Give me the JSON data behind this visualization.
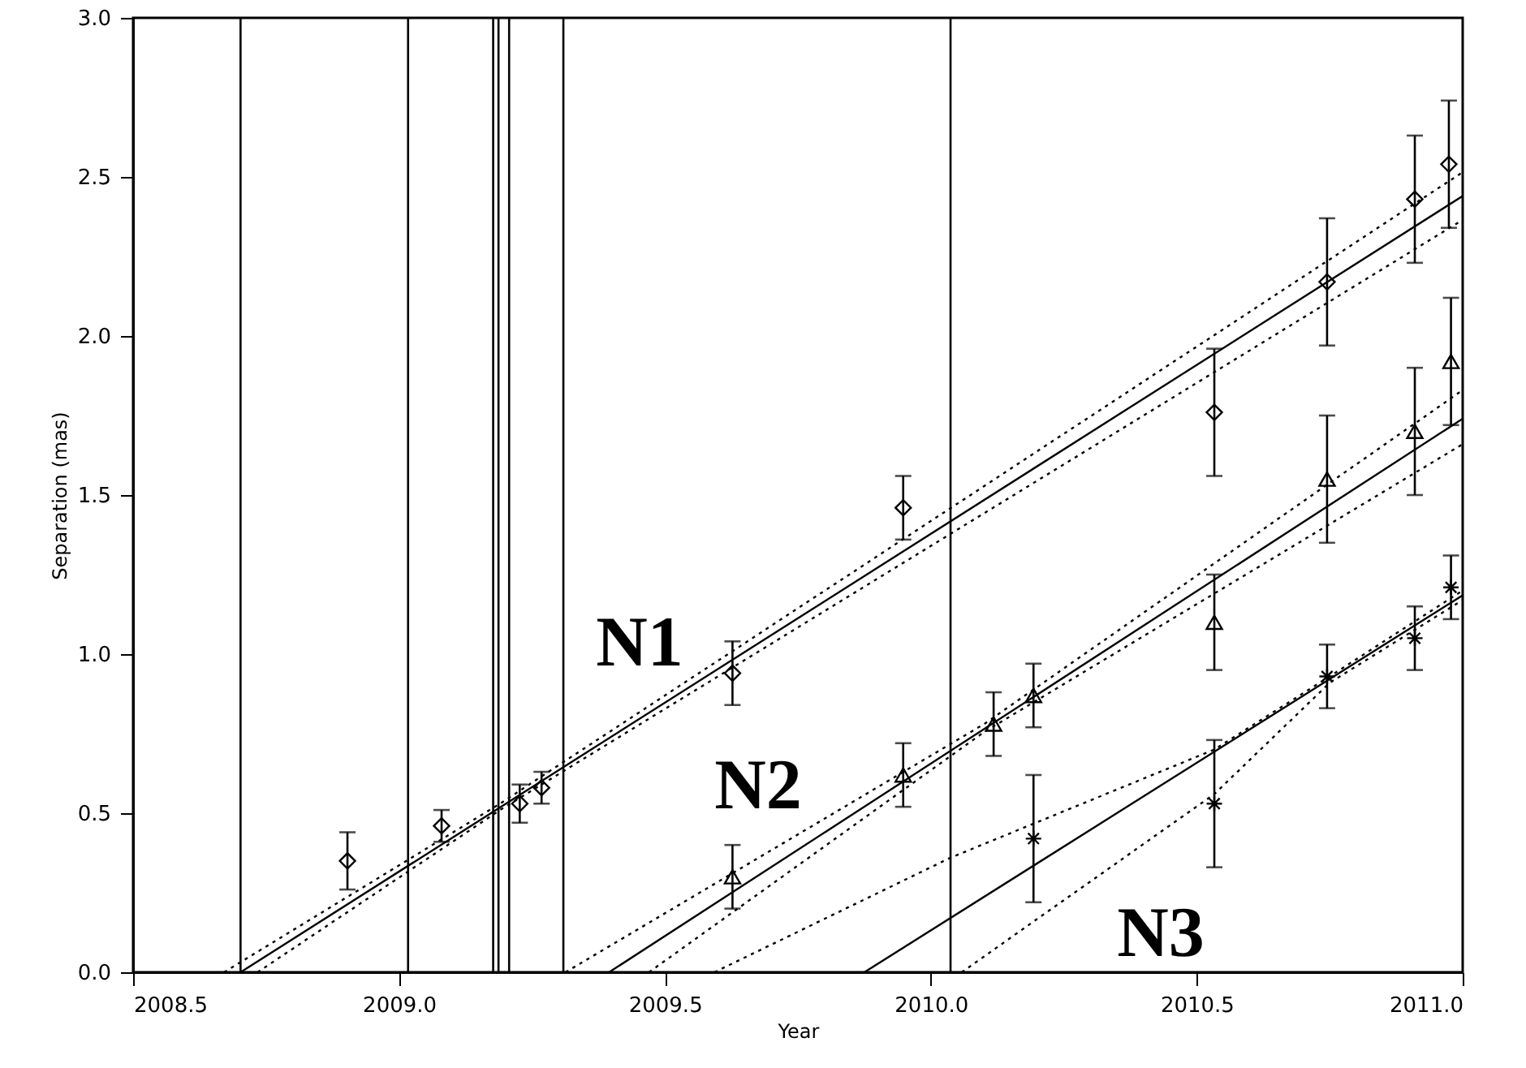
{
  "chart_data": {
    "type": "scatter",
    "xlabel": "Year",
    "ylabel": "Separation (mas)",
    "xlim": [
      2008.5,
      2011.0
    ],
    "ylim": [
      0.0,
      3.0
    ],
    "xticks": [
      {
        "value": 2008.5,
        "label": "2008.5"
      },
      {
        "value": 2009,
        "label": "2009.0"
      },
      {
        "value": 2009.5,
        "label": "2009.5"
      },
      {
        "value": 2010,
        "label": "2010.0"
      },
      {
        "value": 2010.5,
        "label": "2010.5"
      },
      {
        "value": 2011,
        "label": "2011.0"
      }
    ],
    "yticks": [
      {
        "value": 0,
        "label": "0.0"
      },
      {
        "value": 0.5,
        "label": "0.5"
      },
      {
        "value": 1,
        "label": "1.0"
      },
      {
        "value": 1.5,
        "label": "1.5"
      },
      {
        "value": 2,
        "label": "2.0"
      },
      {
        "value": 2.5,
        "label": "2.5"
      },
      {
        "value": 3,
        "label": "3.0"
      }
    ],
    "grid": false,
    "series": [
      {
        "marker": "diamond",
        "color": "#000000",
        "x": [
          2008.903,
          2009.08,
          2009.227,
          2009.268,
          2009.627,
          2009.948,
          2010.533,
          2010.745,
          2010.91,
          2010.974
        ],
        "values": [
          0.35,
          0.46,
          0.53,
          0.58,
          0.94,
          1.46,
          1.76,
          2.17,
          2.43,
          2.54
        ],
        "errors": [
          0.09,
          0.05,
          0.06,
          0.05,
          0.1,
          0.1,
          0.2,
          0.2,
          0.2,
          0.2
        ]
      },
      {
        "marker": "triangle",
        "color": "#000000",
        "x": [
          2009.627,
          2009.948,
          2010.118,
          2010.193,
          2010.533,
          2010.745,
          2010.91,
          2010.978
        ],
        "values": [
          0.3,
          0.62,
          0.78,
          0.87,
          1.1,
          1.55,
          1.7,
          1.92
        ],
        "errors": [
          0.1,
          0.1,
          0.1,
          0.1,
          0.15,
          0.2,
          0.2,
          0.2
        ]
      },
      {
        "marker": "cross",
        "color": "#000000",
        "x": [
          2010.193,
          2010.533,
          2010.745,
          2010.91,
          2010.978
        ],
        "values": [
          0.42,
          0.53,
          0.93,
          1.05,
          1.21
        ],
        "errors": [
          0.2,
          0.2,
          0.1,
          0.1,
          0.1
        ]
      },
      {
        "type": "line",
        "line_style": "solid",
        "color": "#000000",
        "x": [
          2008.702,
          2011.0
        ],
        "values": [
          0.0,
          2.44
        ]
      },
      {
        "type": "line",
        "line_style": "dotted",
        "color": "#000000",
        "x": [
          2008.671,
          2009.19,
          2011.0
        ],
        "values": [
          0.0,
          0.53,
          2.515
        ]
      },
      {
        "type": "line",
        "line_style": "dotted",
        "color": "#000000",
        "x": [
          2008.734,
          2009.19,
          2011.0
        ],
        "values": [
          0.0,
          0.51,
          2.365
        ]
      },
      {
        "type": "line",
        "line_style": "solid",
        "color": "#000000",
        "x": [
          2009.395,
          2011.0
        ],
        "values": [
          0.0,
          1.74
        ]
      },
      {
        "type": "line",
        "line_style": "dotted",
        "color": "#000000",
        "x": [
          2009.313,
          2010.1,
          2011.0
        ],
        "values": [
          0.0,
          0.78,
          1.83
        ]
      },
      {
        "type": "line",
        "line_style": "dotted",
        "color": "#000000",
        "x": [
          2009.47,
          2010.1,
          2011.0
        ],
        "values": [
          0.0,
          0.755,
          1.66
        ]
      },
      {
        "type": "line",
        "line_style": "solid",
        "color": "#000000",
        "x": [
          2009.875,
          2011.0
        ],
        "values": [
          0.0,
          1.185
        ]
      },
      {
        "type": "line",
        "line_style": "dotted",
        "color": "#000000",
        "x": [
          2009.593,
          2010.037,
          2010.533,
          2010.75,
          2011.0
        ],
        "values": [
          0.0,
          0.36,
          0.7,
          0.93,
          1.2
        ]
      },
      {
        "type": "line",
        "line_style": "dotted",
        "color": "#000000",
        "x": [
          2010.058,
          2010.533,
          2010.75,
          2011.0
        ],
        "values": [
          0.0,
          0.56,
          0.91,
          1.17
        ]
      }
    ],
    "ref_lines": [
      {
        "axis": "x",
        "value": 2008.702,
        "color": "#000000"
      },
      {
        "axis": "x",
        "value": 2009.017,
        "color": "#000000"
      },
      {
        "axis": "x",
        "value": 2009.177,
        "color": "#000000"
      },
      {
        "axis": "x",
        "value": 2009.187,
        "color": "#000000"
      },
      {
        "axis": "x",
        "value": 2009.207,
        "color": "#000000"
      },
      {
        "axis": "x",
        "value": 2009.309,
        "color": "#000000"
      },
      {
        "axis": "x",
        "value": 2010.037,
        "color": "#000000"
      }
    ],
    "annotations": [
      "N1",
      "N2",
      "N3"
    ]
  }
}
